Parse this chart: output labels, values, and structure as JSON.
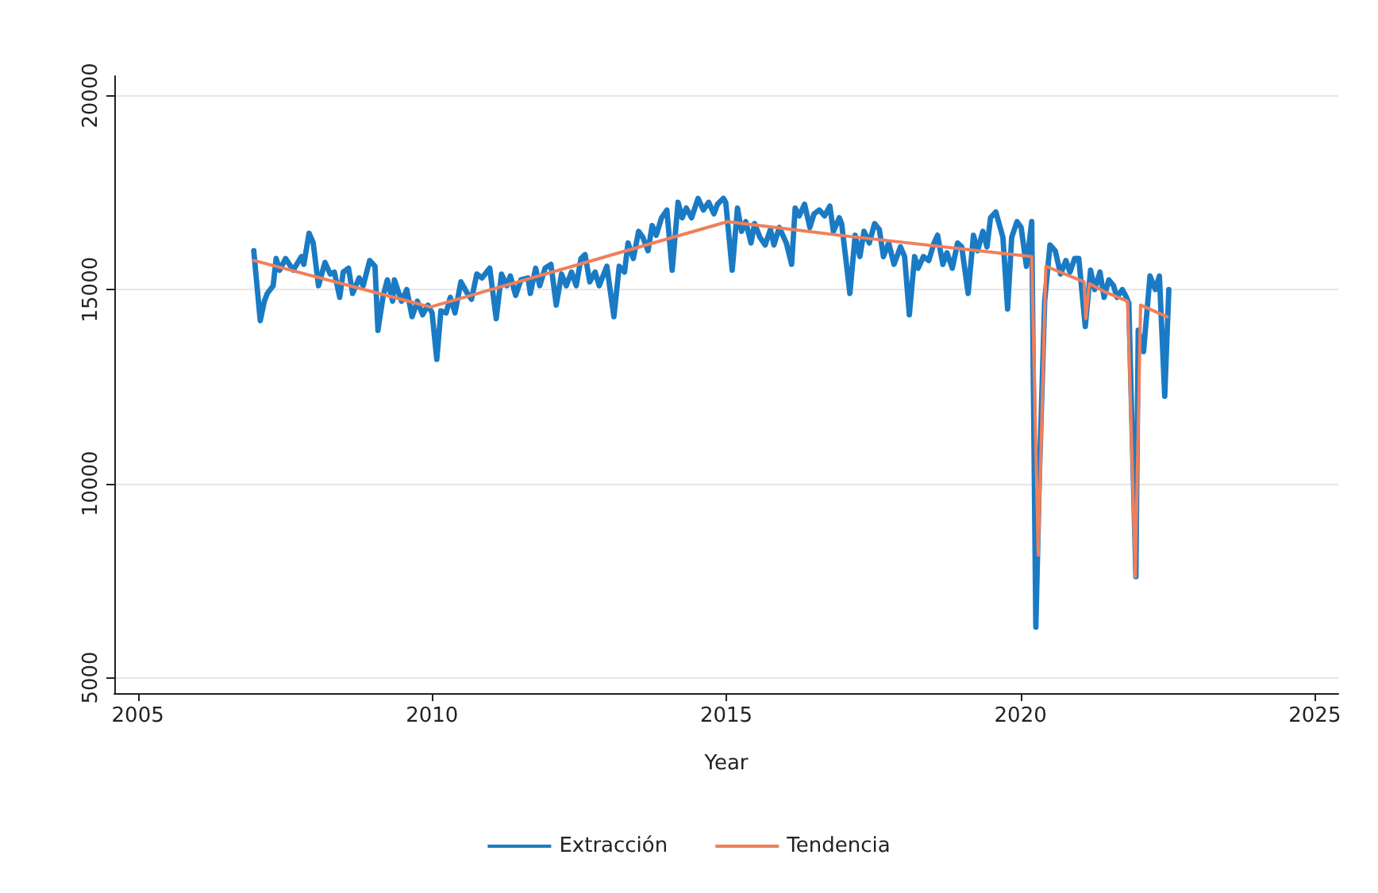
{
  "chart_data": {
    "type": "line",
    "xlabel": "Year",
    "xlim": [
      2004.6,
      2025.4
    ],
    "xticks": [
      2005,
      2010,
      2015,
      2020,
      2025
    ],
    "ylim": [
      4600,
      20500
    ],
    "yticks": [
      5000,
      10000,
      15000,
      20000
    ],
    "grid": "y",
    "legend": "bottom",
    "marker": "none",
    "line_style": "solid",
    "series": [
      {
        "name": "Extracción",
        "color": "#1a7bc4",
        "x": [
          2006.97,
          2007.08,
          2007.15,
          2007.2,
          2007.3,
          2007.35,
          2007.41,
          2007.51,
          2007.64,
          2007.78,
          2007.82,
          2007.91,
          2007.98,
          2008.07,
          2008.18,
          2008.27,
          2008.34,
          2008.43,
          2008.49,
          2008.58,
          2008.65,
          2008.76,
          2008.83,
          2008.94,
          2009.03,
          2009.08,
          2009.17,
          2009.24,
          2009.33,
          2009.36,
          2009.48,
          2009.57,
          2009.66,
          2009.75,
          2009.84,
          2009.93,
          2010.0,
          2010.08,
          2010.15,
          2010.24,
          2010.31,
          2010.39,
          2010.49,
          2010.6,
          2010.67,
          2010.76,
          2010.85,
          2010.98,
          2011.09,
          2011.18,
          2011.27,
          2011.33,
          2011.42,
          2011.51,
          2011.63,
          2011.67,
          2011.76,
          2011.83,
          2011.92,
          2012.02,
          2012.11,
          2012.2,
          2012.28,
          2012.37,
          2012.45,
          2012.53,
          2012.6,
          2012.68,
          2012.77,
          2012.84,
          2012.97,
          2013.09,
          2013.18,
          2013.27,
          2013.33,
          2013.42,
          2013.51,
          2013.58,
          2013.67,
          2013.74,
          2013.81,
          2013.9,
          2013.99,
          2014.08,
          2014.18,
          2014.25,
          2014.32,
          2014.41,
          2014.52,
          2014.61,
          2014.7,
          2014.79,
          2014.85,
          2014.95,
          2014.99,
          2015.1,
          2015.19,
          2015.26,
          2015.33,
          2015.42,
          2015.48,
          2015.57,
          2015.66,
          2015.75,
          2015.81,
          2015.9,
          2016.02,
          2016.11,
          2016.17,
          2016.24,
          2016.33,
          2016.42,
          2016.49,
          2016.58,
          2016.67,
          2016.76,
          2016.82,
          2016.92,
          2016.96,
          2017.1,
          2017.19,
          2017.27,
          2017.34,
          2017.43,
          2017.52,
          2017.6,
          2017.67,
          2017.76,
          2017.85,
          2017.96,
          2018.03,
          2018.11,
          2018.2,
          2018.26,
          2018.35,
          2018.44,
          2018.53,
          2018.59,
          2018.68,
          2018.75,
          2018.84,
          2018.93,
          2019.0,
          2019.11,
          2019.2,
          2019.27,
          2019.36,
          2019.43,
          2019.49,
          2019.58,
          2019.7,
          2019.78,
          2019.85,
          2019.94,
          2020.01,
          2020.1,
          2020.19,
          2020.26,
          2020.32,
          2020.41,
          2020.5,
          2020.59,
          2020.68,
          2020.77,
          2020.84,
          2020.92,
          2020.99,
          2021.1,
          2021.19,
          2021.26,
          2021.35,
          2021.42,
          2021.5,
          2021.58,
          2021.64,
          2021.73,
          2021.8,
          2021.84,
          2021.96,
          2022.0,
          2022.09,
          2022.2,
          2022.29,
          2022.36,
          2022.45,
          2022.52
        ],
        "values": [
          16000,
          14200,
          14700,
          14900,
          15100,
          15800,
          15500,
          15800,
          15500,
          15850,
          15650,
          16450,
          16200,
          15100,
          15700,
          15400,
          15450,
          14800,
          15450,
          15550,
          14900,
          15300,
          15100,
          15750,
          15600,
          13950,
          14850,
          15250,
          14700,
          15250,
          14700,
          15000,
          14300,
          14700,
          14350,
          14600,
          14400,
          13200,
          14450,
          14400,
          14800,
          14400,
          15200,
          14900,
          14750,
          15400,
          15300,
          15550,
          14250,
          15400,
          15100,
          15350,
          14850,
          15250,
          15300,
          14900,
          15550,
          15100,
          15550,
          15650,
          14600,
          15400,
          15100,
          15450,
          15100,
          15800,
          15900,
          15200,
          15450,
          15100,
          15600,
          14300,
          15600,
          15450,
          16200,
          15800,
          16500,
          16350,
          16000,
          16650,
          16400,
          16850,
          17050,
          15500,
          17250,
          16850,
          17100,
          16850,
          17350,
          17050,
          17250,
          16950,
          17200,
          17350,
          17250,
          15500,
          17100,
          16500,
          16750,
          16200,
          16700,
          16350,
          16150,
          16550,
          16150,
          16600,
          16200,
          15650,
          17100,
          16900,
          17200,
          16600,
          16950,
          17050,
          16900,
          17150,
          16500,
          16850,
          16700,
          14900,
          16400,
          15850,
          16500,
          16200,
          16700,
          16550,
          15850,
          16200,
          15650,
          16100,
          15850,
          14350,
          15850,
          15550,
          15850,
          15750,
          16200,
          16400,
          15650,
          15950,
          15550,
          16200,
          16100,
          14900,
          16400,
          16000,
          16500,
          16100,
          16850,
          17000,
          16350,
          14500,
          16350,
          16750,
          16600,
          15600,
          16750,
          6300,
          10200,
          14700,
          16150,
          16000,
          15400,
          15750,
          15450,
          15800,
          15800,
          14050,
          15500,
          15000,
          15450,
          14800,
          15250,
          15100,
          14800,
          15000,
          14800,
          14650,
          7600,
          13950,
          13400,
          15350,
          15000,
          15350,
          12250,
          15000
        ]
      },
      {
        "name": "Tendencia",
        "color": "#f07f5a",
        "x": [
          2006.97,
          2009.97,
          2015.02,
          2016.92,
          2020.19,
          2020.3,
          2020.43,
          2021.08,
          2021.11,
          2021.17,
          2021.42,
          2021.82,
          2021.95,
          2022.04,
          2022.49
        ],
        "values": [
          15750,
          14550,
          16750,
          16400,
          15850,
          8150,
          15600,
          15200,
          14250,
          15150,
          14950,
          14700,
          7600,
          14600,
          14300
        ]
      }
    ]
  }
}
